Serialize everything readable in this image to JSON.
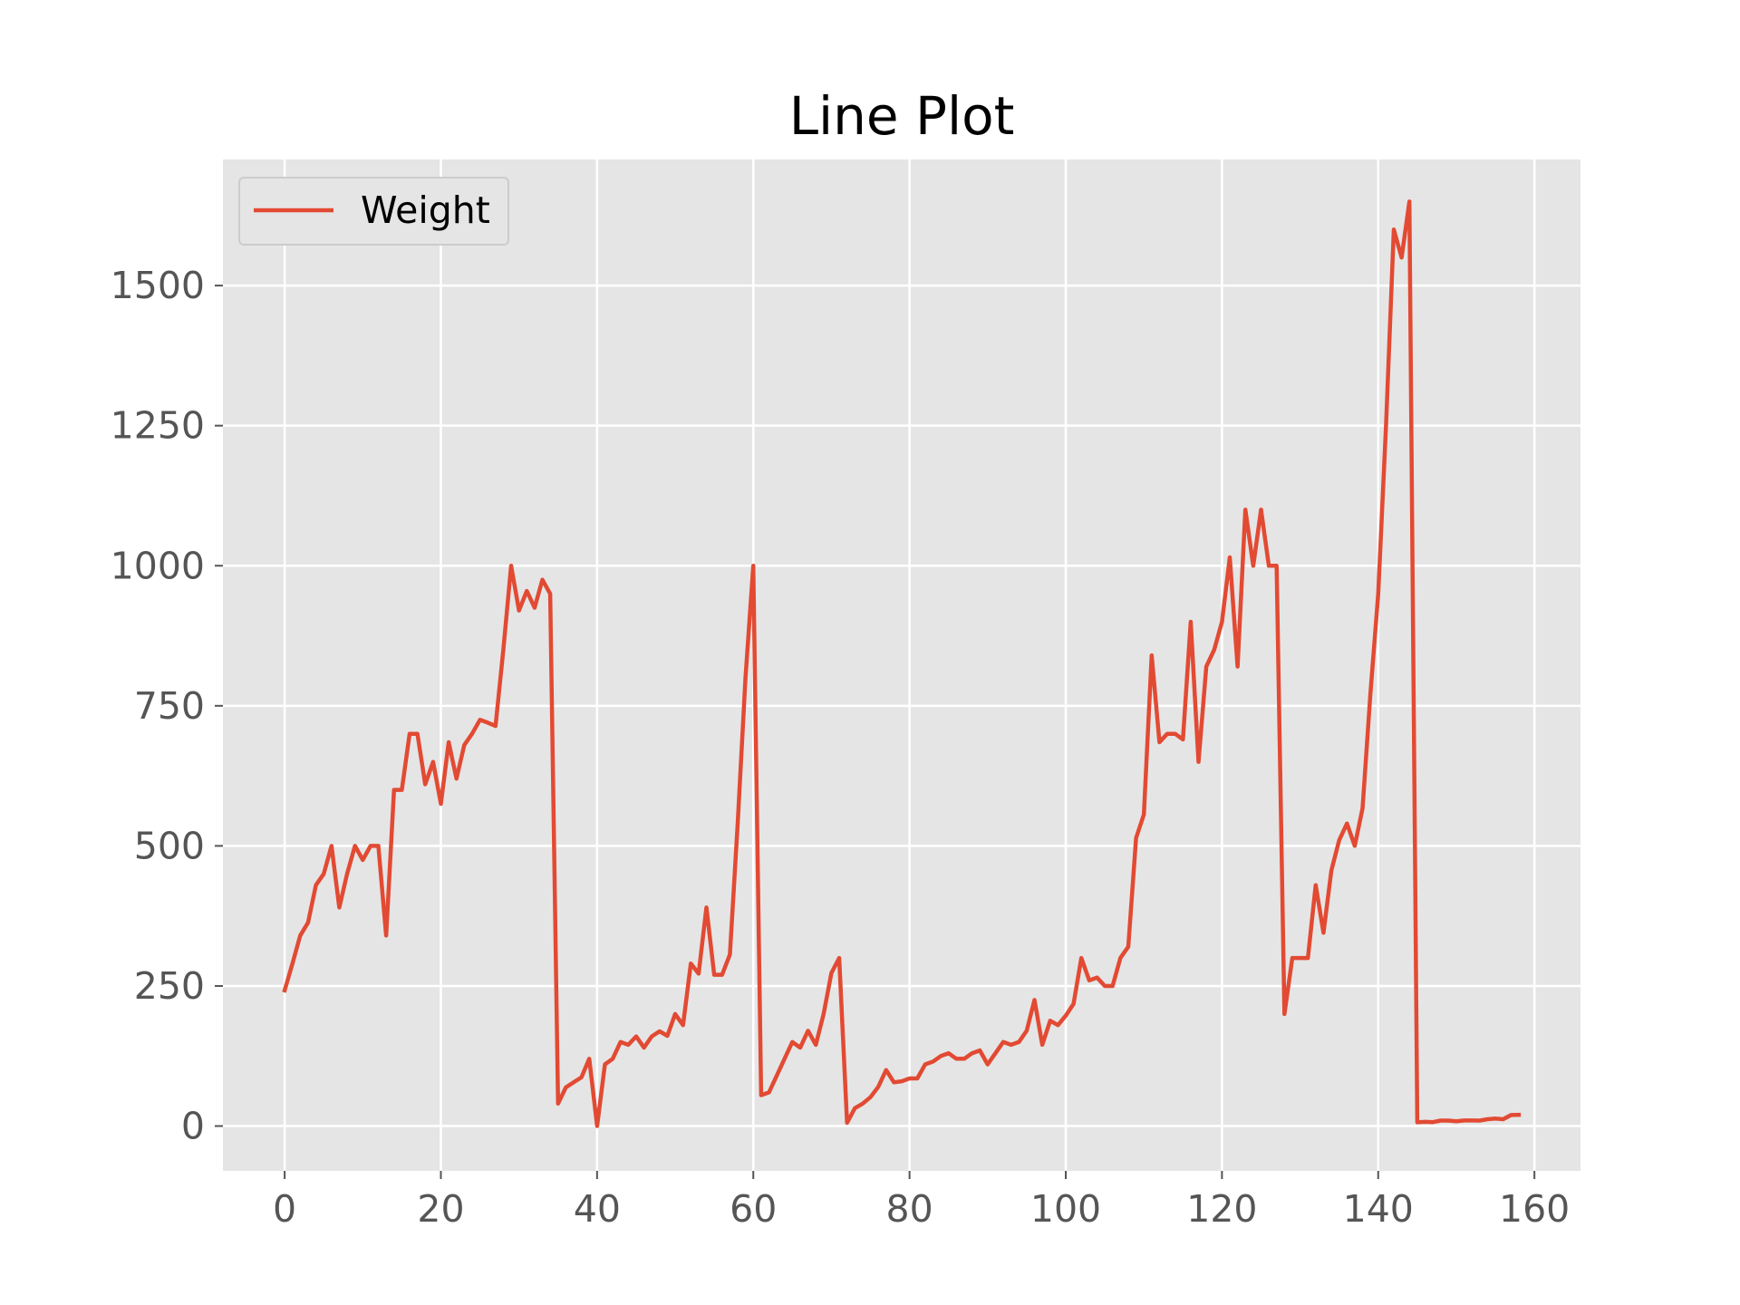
{
  "chart_data": {
    "type": "line",
    "title": "Line Plot",
    "xlabel": "",
    "ylabel": "",
    "xlim": [
      -7.9,
      165.9
    ],
    "ylim": [
      -80,
      1725
    ],
    "x_ticks": [
      0,
      20,
      40,
      60,
      80,
      100,
      120,
      140,
      160
    ],
    "y_ticks": [
      0,
      250,
      500,
      750,
      1000,
      1250,
      1500
    ],
    "grid": true,
    "legend": {
      "placement": "top-left",
      "entries": [
        "Weight"
      ]
    },
    "colors": {
      "plot_background": "#e5e5e5",
      "grid": "#ffffff",
      "series": "#e24a33",
      "tick": "#555555"
    },
    "series": [
      {
        "name": "Weight",
        "x": [
          0,
          1,
          2,
          3,
          4,
          5,
          6,
          7,
          8,
          9,
          10,
          11,
          12,
          13,
          14,
          15,
          16,
          17,
          18,
          19,
          20,
          21,
          22,
          23,
          24,
          25,
          26,
          27,
          28,
          29,
          30,
          31,
          32,
          33,
          34,
          35,
          36,
          37,
          38,
          39,
          40,
          41,
          42,
          43,
          44,
          45,
          46,
          47,
          48,
          49,
          50,
          51,
          52,
          53,
          54,
          55,
          56,
          57,
          58,
          59,
          60,
          61,
          62,
          63,
          64,
          65,
          66,
          67,
          68,
          69,
          70,
          71,
          72,
          73,
          74,
          75,
          76,
          77,
          78,
          79,
          80,
          81,
          82,
          83,
          84,
          85,
          86,
          87,
          88,
          89,
          90,
          91,
          92,
          93,
          94,
          95,
          96,
          97,
          98,
          99,
          100,
          101,
          102,
          103,
          104,
          105,
          106,
          107,
          108,
          109,
          110,
          111,
          112,
          113,
          114,
          115,
          116,
          117,
          118,
          119,
          120,
          121,
          122,
          123,
          124,
          125,
          126,
          127,
          128,
          129,
          130,
          131,
          132,
          133,
          134,
          135,
          136,
          137,
          138,
          139,
          140,
          141,
          142,
          143,
          144,
          145,
          146,
          147,
          148,
          149,
          150,
          151,
          152,
          153,
          154,
          155,
          156,
          157,
          158
        ],
        "values": [
          242,
          290,
          340,
          363,
          430,
          450,
          500,
          390,
          450,
          500,
          475,
          500,
          500,
          340,
          600,
          600,
          700,
          700,
          610,
          650,
          575,
          685,
          620,
          680,
          700,
          725,
          720,
          714,
          850,
          1000,
          920,
          955,
          925,
          975,
          950,
          40,
          69,
          78,
          87,
          120,
          0,
          110,
          120,
          150,
          145,
          160,
          140,
          160,
          169,
          161,
          200,
          180,
          290,
          272,
          390,
          270,
          270,
          306,
          540,
          800,
          1000,
          55,
          60,
          90,
          120,
          150,
          140,
          170,
          145,
          200,
          273,
          300,
          5.9,
          32,
          40,
          51.5,
          70,
          100,
          78,
          80,
          85,
          85,
          110,
          115,
          125,
          130,
          120,
          120,
          130,
          135,
          110,
          130,
          150,
          145,
          150,
          170,
          225,
          145,
          188,
          180,
          197,
          218,
          300,
          260,
          265,
          250,
          250,
          300,
          320,
          514,
          556,
          840,
          685,
          700,
          700,
          690,
          900,
          650,
          820,
          850,
          900,
          1015,
          820,
          1100,
          1000,
          1100,
          1000,
          1000,
          200,
          300,
          300,
          300,
          430,
          345,
          456,
          510,
          540,
          500,
          567,
          770,
          950,
          1250,
          1600,
          1550,
          1650,
          6.7,
          7.5,
          7,
          9.7,
          9.8,
          8.7,
          10,
          9.9,
          9.8,
          12.2,
          13.4,
          12.2,
          19.7,
          19.9
        ]
      }
    ]
  }
}
